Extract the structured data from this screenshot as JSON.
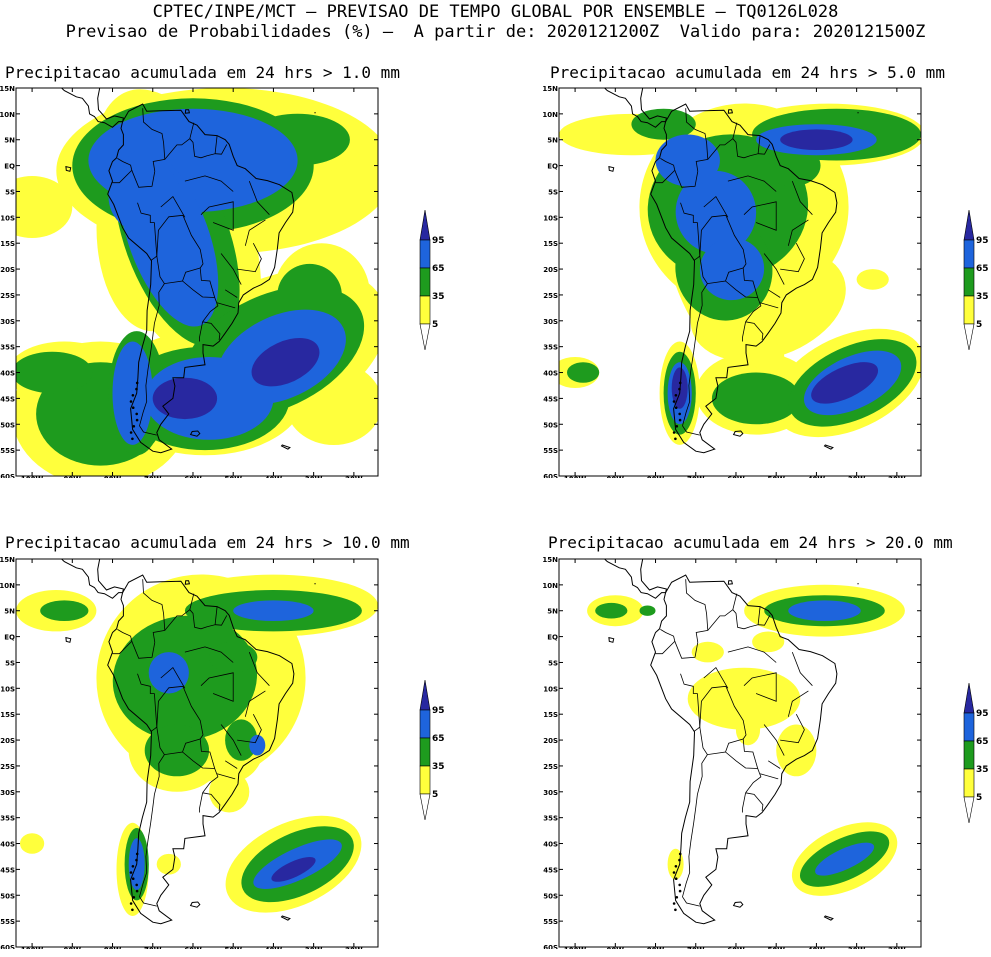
{
  "header": {
    "line1": "CPTEC/INPE/MCT – PREVISAO DE TEMPO GLOBAL POR ENSEMBLE – TQ0126L028",
    "line2": "Previsao de Probabilidades (%) –  A partir de: 2020121200Z  Valido para: 2020121500Z"
  },
  "colors": {
    "prob_5_35": "#ffff3c",
    "prob_35_65": "#1e9b1e",
    "prob_65_95": "#1e64dc",
    "prob_95": "#2828a0",
    "coast": "#000000"
  },
  "axes": {
    "lat_ticks": [
      "15N",
      "10N",
      "5N",
      "EQ",
      "5S",
      "10S",
      "15S",
      "20S",
      "25S",
      "30S",
      "35S",
      "40S",
      "45S",
      "50S",
      "55S",
      "60S"
    ],
    "lon_ticks": [
      "100W",
      "90W",
      "80W",
      "70W",
      "60W",
      "50W",
      "40W",
      "30W",
      "20W"
    ]
  },
  "colorbar": {
    "labels": [
      "95",
      "65",
      "35",
      "5"
    ]
  },
  "panels": [
    {
      "title": "Precipitacao acumulada em 24 hrs > 1.0 mm",
      "threshold_mm": 1.0
    },
    {
      "title": "Precipitacao acumulada em 24 hrs > 5.0 mm",
      "threshold_mm": 5.0
    },
    {
      "title": "Precipitacao acumulada em 24 hrs > 10.0 mm",
      "threshold_mm": 10.0
    },
    {
      "title": "Precipitacao acumulada em 24 hrs > 20.0 mm",
      "threshold_mm": 20.0
    }
  ]
}
